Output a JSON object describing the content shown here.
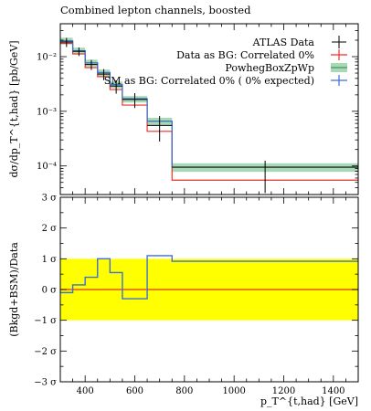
{
  "chart_data": [
    {
      "type": "line",
      "title": "Combined lepton channels, boosted",
      "ylabel": "dσ/dp_T^{t,had} [pb/GeV]",
      "yscale": "log",
      "ylim": [
        3e-05,
        0.04
      ],
      "xlim": [
        300,
        1500
      ],
      "y_ticks": [
        {
          "value": 0.01,
          "label": "10⁻²"
        },
        {
          "value": 0.001,
          "label": "10⁻³"
        },
        {
          "value": 0.0001,
          "label": "10⁻⁴"
        }
      ],
      "bin_edges": [
        300,
        350,
        400,
        450,
        500,
        550,
        650,
        750,
        1500
      ],
      "legend_position": "top-right",
      "series": [
        {
          "name": "ATLAS Data",
          "kind": "points",
          "color": "#000000",
          "x": [
            325,
            375,
            425,
            475,
            525,
            600,
            700,
            1125
          ],
          "y": [
            0.0185,
            0.0125,
            0.0072,
            0.0048,
            0.0029,
            0.00165,
            0.00055,
            9.5e-05
          ],
          "err_low": [
            0.0035,
            0.0022,
            0.0015,
            0.0011,
            0.0008,
            0.0005,
            0.00027,
            6.3e-05
          ],
          "err_high": [
            0.0035,
            0.0022,
            0.0015,
            0.0011,
            0.0008,
            0.0005,
            0.00027,
            3e-05
          ]
        },
        {
          "name": "Data as BG: Correlated 0%",
          "kind": "step",
          "color": "#e8312a",
          "values": [
            0.0175,
            0.0112,
            0.0063,
            0.0043,
            0.0025,
            0.0013,
            0.00043,
            5.5e-05
          ]
        },
        {
          "name": "PowhegBoxZpWp",
          "kind": "band",
          "color": "#3a9a5a",
          "fill": "#a8d8b4",
          "values": [
            0.0195,
            0.0128,
            0.0077,
            0.0051,
            0.0031,
            0.0017,
            0.00066,
            9.5e-05
          ],
          "low": [
            0.0168,
            0.011,
            0.0066,
            0.0044,
            0.00265,
            0.00145,
            0.00056,
            7.8e-05
          ],
          "high": [
            0.0222,
            0.0146,
            0.0088,
            0.0058,
            0.0035,
            0.0019,
            0.00076,
            0.000112
          ]
        },
        {
          "name": "SM as BG: Correlated 0% ( 0% expected)",
          "kind": "step",
          "color": "#3d6fd6",
          "values": [
            0.0195,
            0.0128,
            0.0077,
            0.0051,
            0.0031,
            0.0017,
            0.00066,
            9.5e-05
          ]
        }
      ]
    },
    {
      "type": "line",
      "ylabel": "(Bkgd+BSM)/Data",
      "xlabel": "p_T^{t,had} [GeV]",
      "ylim": [
        -3,
        3
      ],
      "xlim": [
        300,
        1500
      ],
      "y_ticks": [
        {
          "value": 3,
          "label": "3 σ"
        },
        {
          "value": 2,
          "label": "2 σ"
        },
        {
          "value": 1,
          "label": "1 σ"
        },
        {
          "value": 0,
          "label": "0 σ"
        },
        {
          "value": -1,
          "label": "−1 σ"
        },
        {
          "value": -2,
          "label": "−2 σ"
        },
        {
          "value": -3,
          "label": "−3 σ"
        }
      ],
      "x_ticks": [
        400,
        600,
        800,
        1000,
        1200,
        1400
      ],
      "band": {
        "low": -1,
        "high": 1,
        "color": "#ffff00"
      },
      "bin_edges": [
        300,
        350,
        400,
        450,
        500,
        550,
        650,
        750,
        1500
      ],
      "series": [
        {
          "name": "Data as BG: Correlated 0%",
          "kind": "step",
          "color": "#e8312a",
          "values": [
            0,
            0,
            0,
            0,
            0,
            0,
            0,
            0
          ]
        },
        {
          "name": "SM as BG: Correlated 0% ( 0% expected)",
          "kind": "step",
          "color": "#3d6fd6",
          "values": [
            -0.1,
            0.15,
            0.4,
            1.0,
            0.55,
            -0.3,
            1.1,
            0.92
          ]
        }
      ]
    }
  ]
}
